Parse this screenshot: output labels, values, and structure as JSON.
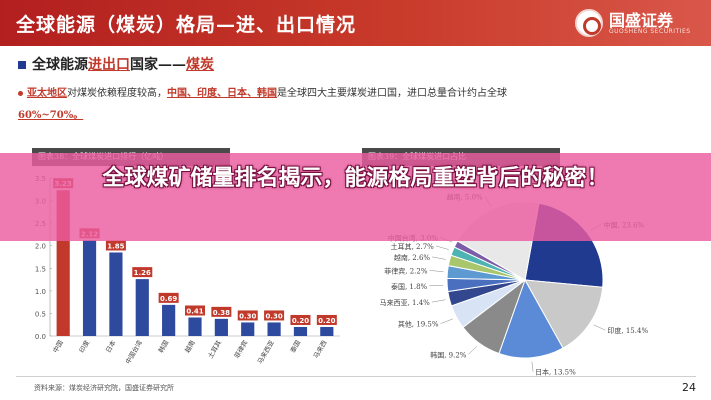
{
  "header": {
    "title": "全球能源（煤炭）格局—进、出口情况",
    "brand_name": "国盛证券",
    "brand_sub": "GUOSHENG SECURITIES"
  },
  "section": {
    "title_prefix": "全球能源",
    "title_red": "进出口",
    "title_mid": "国家——",
    "title_red2": "煤炭"
  },
  "body": {
    "line1_red": "亚太地区",
    "line1_text": "对煤炭依赖程度较高，",
    "line1_red2": "中国、印度、日本、韩国",
    "line1_text2": "是全球四大主要煤炭进口国，进口总量合计约占全球",
    "line2_red": "60%~70%。"
  },
  "banner": {
    "text": "全球煤矿储量排名揭示，能源格局重塑背后的秘密！"
  },
  "figures": {
    "left_title": "图表38：全球煤炭进口排行（亿吨）",
    "right_title": "图表39：全球煤炭进口占比"
  },
  "chart_data": [
    {
      "type": "bar",
      "title": "图表38：全球煤炭进口排行（亿吨）",
      "categories": [
        "中国",
        "印度",
        "日本",
        "中国台湾",
        "韩国",
        "越南",
        "土耳其",
        "菲律宾",
        "马来西亚",
        "泰国",
        "马来西"
      ],
      "values": [
        3.23,
        2.12,
        1.85,
        1.26,
        0.69,
        0.41,
        0.38,
        0.3,
        0.3,
        0.2,
        0.2
      ],
      "ylim": [
        0,
        3.5
      ],
      "yticks": [
        "0.0",
        "0.5",
        "1.0",
        "1.5",
        "2.0",
        "2.5",
        "3.0",
        "3.5"
      ],
      "colors": {
        "highlight": "#c0392b",
        "bar": "#2e4a9e",
        "label_bg": "#c0392b"
      }
    },
    {
      "type": "pie",
      "title": "图表39：全球煤炭进口占比",
      "slices": [
        {
          "label": "中国",
          "value": 23.6,
          "color": "#1f3a8f"
        },
        {
          "label": "印度",
          "value": 15.4,
          "color": "#c9c9c9"
        },
        {
          "label": "日本",
          "value": 13.5,
          "color": "#5b8bd6"
        },
        {
          "label": "韩国",
          "value": 9.2,
          "color": "#8a8a8a"
        },
        {
          "label": "越南",
          "value": 5.0,
          "color": "#d8e4f5"
        },
        {
          "label": "中国台湾",
          "value": 3.0,
          "color": "#33478f"
        },
        {
          "label": "土耳其",
          "value": 2.7,
          "color": "#4a6fbf"
        },
        {
          "label": "越南",
          "value": 2.6,
          "color": "#5d9ad1"
        },
        {
          "label": "菲律宾",
          "value": 2.2,
          "color": "#a8c66c"
        },
        {
          "label": "泰国",
          "value": 1.8,
          "color": "#4db3b3"
        },
        {
          "label": "马来西亚",
          "value": 1.4,
          "color": "#7a5ca8"
        },
        {
          "label": "其他",
          "value": 19.5,
          "color": "#e8e8e8"
        }
      ],
      "visible_labels": [
        "中国, 23.6%",
        "印度, 15.4%",
        "日本, 13.5%",
        "韩国, 9.2%",
        "其他, 19.5%",
        "马来西亚, 1.4%",
        "泰国, 1.8%",
        "菲律宾, 2.2%",
        "越南, 2.6%",
        "土耳其, 2.7%",
        "中国台湾, 3.0%",
        "越南, 5.0%"
      ]
    }
  ],
  "footer": {
    "source": "资料来源：煤炭经济研究院，国盛证券研究所",
    "page": "24"
  }
}
